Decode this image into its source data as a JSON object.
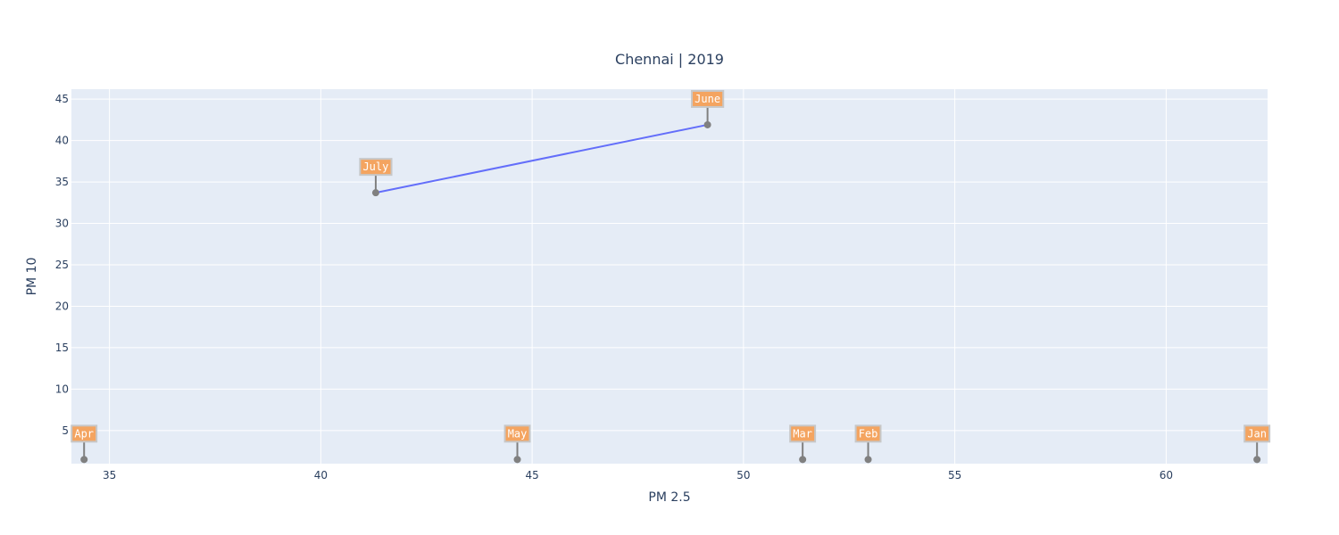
{
  "chart_data": {
    "type": "scatter",
    "title": "Chennai | 2019",
    "xlabel": "PM 2.5",
    "ylabel": "PM 10",
    "xlim": [
      34.1,
      62.4
    ],
    "ylim": [
      1,
      46.2
    ],
    "x_ticks": [
      35,
      40,
      45,
      50,
      55,
      60
    ],
    "y_ticks": [
      5,
      10,
      15,
      20,
      25,
      30,
      35,
      40,
      45
    ],
    "grid": true,
    "line_series": {
      "color": "#636efa",
      "points": [
        {
          "x": 41.3,
          "y": 33.7
        },
        {
          "x": 49.15,
          "y": 41.9
        }
      ]
    },
    "points": [
      {
        "label": "Apr",
        "x": 34.4,
        "y": 1.5
      },
      {
        "label": "May",
        "x": 44.65,
        "y": 1.5
      },
      {
        "label": "Mar",
        "x": 51.4,
        "y": 1.5
      },
      {
        "label": "Feb",
        "x": 52.95,
        "y": 1.5
      },
      {
        "label": "Jan",
        "x": 62.15,
        "y": 1.5
      },
      {
        "label": "July",
        "x": 41.3,
        "y": 33.7
      },
      {
        "label": "June",
        "x": 49.15,
        "y": 41.9
      }
    ],
    "colors": {
      "plot_background": "#e5ecf6",
      "grid": "#ffffff",
      "marker": "#808080",
      "annotation_fill": "#f4a460",
      "annotation_border": "#c7c7c7"
    }
  }
}
